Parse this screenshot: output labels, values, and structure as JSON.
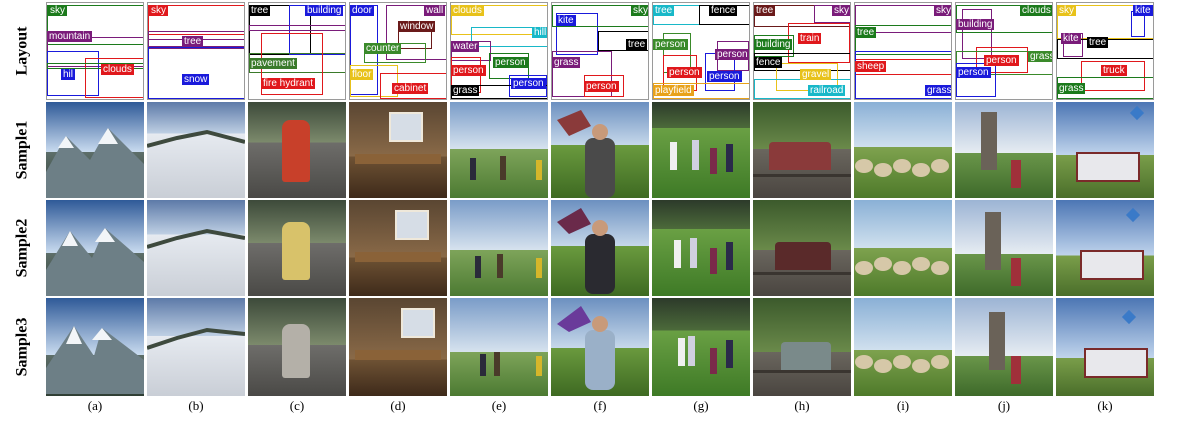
{
  "row_labels": [
    "Layout",
    "Sample1",
    "Sample2",
    "Sample3"
  ],
  "columns": [
    {
      "caption": "(a)",
      "scene": "mountain",
      "tags": [
        {
          "text": "sky",
          "bg": "#1c7a1c"
        },
        {
          "text": "mountain",
          "bg": "#7a1c7a"
        },
        {
          "text": "hil",
          "bg": "#1a1adb"
        },
        {
          "text": "clouds",
          "bg": "#e0181c"
        }
      ]
    },
    {
      "caption": "(b)",
      "scene": "snow",
      "tags": [
        {
          "text": "sky",
          "bg": "#e0181c"
        },
        {
          "text": "tree",
          "bg": "#7a1c7a"
        },
        {
          "text": "snow",
          "bg": "#1a1adb"
        }
      ]
    },
    {
      "caption": "(c)",
      "scene": "hydrant",
      "tags": [
        {
          "text": "tree",
          "bg": "#000000"
        },
        {
          "text": "building",
          "bg": "#1a1adb"
        },
        {
          "text": "pavement",
          "bg": "#3a7a2a"
        },
        {
          "text": "fire hydrant",
          "bg": "#e0181c"
        }
      ]
    },
    {
      "caption": "(d)",
      "scene": "kitchen",
      "tags": [
        {
          "text": "door",
          "bg": "#1a1adb"
        },
        {
          "text": "wall",
          "bg": "#7a1c7a"
        },
        {
          "text": "window",
          "bg": "#6a1a1a"
        },
        {
          "text": "counter",
          "bg": "#3a8a2a"
        },
        {
          "text": "floor",
          "bg": "#e8c21a"
        },
        {
          "text": "cabinet",
          "bg": "#e0181c"
        }
      ]
    },
    {
      "caption": "(e)",
      "scene": "field",
      "tags": [
        {
          "text": "clouds",
          "bg": "#e8c21a"
        },
        {
          "text": "hill",
          "bg": "#18b8c8"
        },
        {
          "text": "water",
          "bg": "#7a1c7a"
        },
        {
          "text": "person",
          "bg": "#1c7a1c"
        },
        {
          "text": "person",
          "bg": "#e0181c"
        },
        {
          "text": "person",
          "bg": "#1a1adb"
        },
        {
          "text": "grass",
          "bg": "#000000"
        }
      ]
    },
    {
      "caption": "(f)",
      "scene": "kite",
      "tags": [
        {
          "text": "kite",
          "bg": "#1a1adb"
        },
        {
          "text": "sky",
          "bg": "#1c7a1c"
        },
        {
          "text": "tree",
          "bg": "#000000"
        },
        {
          "text": "grass",
          "bg": "#7a1c7a"
        },
        {
          "text": "person",
          "bg": "#e0181c"
        }
      ]
    },
    {
      "caption": "(g)",
      "scene": "frisbee",
      "tags": [
        {
          "text": "tree",
          "bg": "#18b8c8"
        },
        {
          "text": "fence",
          "bg": "#000000"
        },
        {
          "text": "person",
          "bg": "#3a8a2a"
        },
        {
          "text": "person",
          "bg": "#7a1c7a"
        },
        {
          "text": "person",
          "bg": "#e0181c"
        },
        {
          "text": "person",
          "bg": "#1a1adb"
        },
        {
          "text": "playfield",
          "bg": "#e8a21a"
        }
      ]
    },
    {
      "caption": "(h)",
      "scene": "train",
      "tags": [
        {
          "text": "tree",
          "bg": "#6a1a1a"
        },
        {
          "text": "sky",
          "bg": "#7a1c7a"
        },
        {
          "text": "train",
          "bg": "#e0181c"
        },
        {
          "text": "building",
          "bg": "#1c7a1c"
        },
        {
          "text": "fence",
          "bg": "#000000"
        },
        {
          "text": "gravel",
          "bg": "#e8c21a"
        },
        {
          "text": "railroad",
          "bg": "#18b8c8"
        }
      ]
    },
    {
      "caption": "(i)",
      "scene": "sheep",
      "tags": [
        {
          "text": "sky",
          "bg": "#7a1c7a"
        },
        {
          "text": "tree",
          "bg": "#1c7a1c"
        },
        {
          "text": "sheep",
          "bg": "#e0181c"
        },
        {
          "text": "grass",
          "bg": "#1a1adb"
        }
      ]
    },
    {
      "caption": "(j)",
      "scene": "people",
      "tags": [
        {
          "text": "building",
          "bg": "#7a1c7a"
        },
        {
          "text": "clouds",
          "bg": "#1c7a1c"
        },
        {
          "text": "person",
          "bg": "#e0181c"
        },
        {
          "text": "grass",
          "bg": "#3a8a2a"
        },
        {
          "text": "person",
          "bg": "#1a1adb"
        }
      ]
    },
    {
      "caption": "(k)",
      "scene": "truck",
      "tags": [
        {
          "text": "sky",
          "bg": "#e8c21a"
        },
        {
          "text": "kite",
          "bg": "#1a1adb"
        },
        {
          "text": "kite",
          "bg": "#7a1c7a"
        },
        {
          "text": "tree",
          "bg": "#000000"
        },
        {
          "text": "truck",
          "bg": "#e0181c"
        },
        {
          "text": "grass",
          "bg": "#1c7a1c"
        }
      ]
    }
  ]
}
